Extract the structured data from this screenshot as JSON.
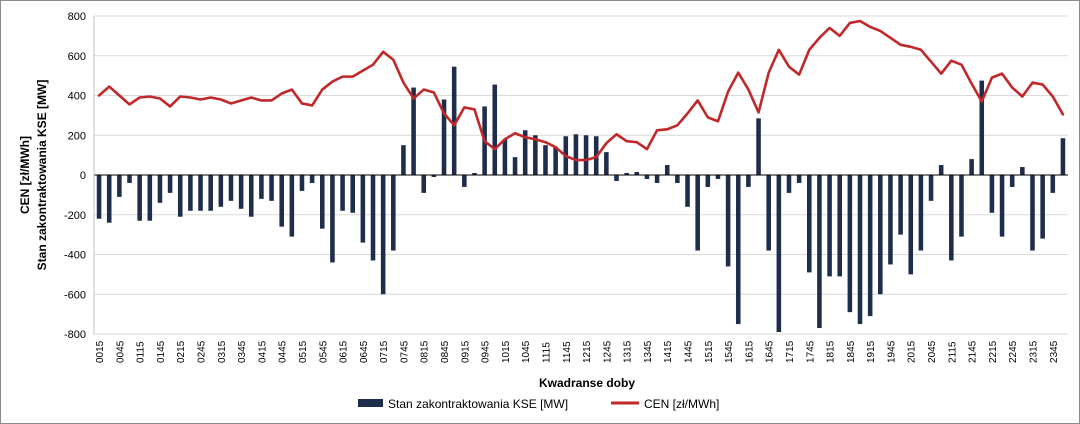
{
  "chart_data": {
    "type": "bar+line",
    "xlabel": "Kwadranse doby",
    "ylabel_line1": "CEN [zł/MWh]",
    "ylabel_line2": "Stan zakontraktowania KSE [MW]",
    "ylim": [
      -800,
      800
    ],
    "yticks": [
      800,
      600,
      400,
      200,
      0,
      -200,
      -400,
      -600,
      -800
    ],
    "x_tick_labels": [
      "0015",
      "0045",
      "0115",
      "0145",
      "0215",
      "0245",
      "0315",
      "0345",
      "0415",
      "0445",
      "0515",
      "0545",
      "0615",
      "0645",
      "0715",
      "0745",
      "0815",
      "0845",
      "0915",
      "0945",
      "1015",
      "1045",
      "1115",
      "1145",
      "1215",
      "1245",
      "1315",
      "1345",
      "1415",
      "1445",
      "1515",
      "1545",
      "1615",
      "1645",
      "1715",
      "1745",
      "1815",
      "1845",
      "1915",
      "1945",
      "2015",
      "2045",
      "2115",
      "2145",
      "2215",
      "2245",
      "2315",
      "2345"
    ],
    "x_tick_every": 2,
    "series": [
      {
        "name": "Stan zakontraktowania KSE [MW]",
        "type": "bar",
        "color": "#1f2d4d",
        "values": [
          -220,
          -240,
          -110,
          -40,
          -230,
          -230,
          -140,
          -90,
          -210,
          -180,
          -180,
          -180,
          -160,
          -130,
          -170,
          -210,
          -120,
          -130,
          -260,
          -310,
          -80,
          -40,
          -270,
          -440,
          -180,
          -190,
          -340,
          -430,
          -600,
          -380,
          150,
          440,
          -90,
          -10,
          380,
          545,
          -60,
          10,
          345,
          455,
          180,
          90,
          225,
          200,
          150,
          140,
          195,
          205,
          200,
          195,
          115,
          -30,
          10,
          15,
          -20,
          -40,
          50,
          -40,
          -160,
          -380,
          -60,
          -20,
          -460,
          -750,
          -60,
          285,
          -380,
          -790,
          -90,
          -40,
          -490,
          -770,
          -510,
          -510,
          -690,
          -750,
          -710,
          -600,
          -450,
          -300,
          -500,
          -380,
          -130,
          50,
          -430,
          -310,
          80,
          475,
          -190,
          -310,
          -60,
          40,
          -380,
          -320,
          -90,
          185
        ]
      },
      {
        "name": "CEN [zł/MWh]",
        "type": "line",
        "color": "#c0282a",
        "values": [
          400,
          445,
          400,
          355,
          390,
          395,
          385,
          345,
          395,
          390,
          380,
          390,
          380,
          360,
          375,
          390,
          375,
          375,
          410,
          430,
          360,
          350,
          430,
          470,
          495,
          495,
          525,
          555,
          620,
          580,
          465,
          385,
          430,
          415,
          310,
          250,
          340,
          330,
          170,
          130,
          180,
          210,
          190,
          180,
          165,
          140,
          95,
          75,
          75,
          90,
          160,
          205,
          170,
          165,
          130,
          225,
          230,
          250,
          310,
          375,
          290,
          270,
          420,
          515,
          430,
          315,
          515,
          630,
          545,
          505,
          630,
          690,
          740,
          700,
          765,
          775,
          745,
          725,
          690,
          655,
          645,
          630,
          570,
          510,
          575,
          555,
          460,
          370,
          490,
          510,
          440,
          395,
          465,
          455,
          395,
          305
        ]
      }
    ],
    "legend": {
      "position": "bottom"
    }
  }
}
